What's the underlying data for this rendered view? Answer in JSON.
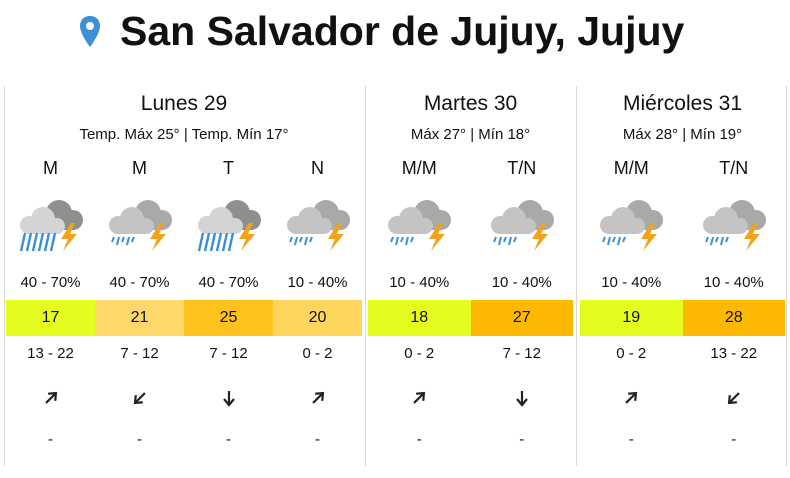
{
  "header": {
    "title": "San Salvador de Jujuy, Jujuy"
  },
  "days": [
    {
      "name": "Lunes 29",
      "summary": "Temp. Máx 25° | Temp. Mín 17°",
      "periods": [
        {
          "label": "M",
          "icon": "storm",
          "precip": "40 - 70%",
          "temp": "17",
          "color": "#e5fc1f",
          "wind": "13 - 22",
          "arrow": "ne",
          "gust": "-"
        },
        {
          "label": "M",
          "icon": "showers",
          "precip": "40 - 70%",
          "temp": "21",
          "color": "#fed86a",
          "wind": "7 - 12",
          "arrow": "sw",
          "gust": "-"
        },
        {
          "label": "T",
          "icon": "storm",
          "precip": "40 - 70%",
          "temp": "25",
          "color": "#fdc21c",
          "wind": "7 - 12",
          "arrow": "s",
          "gust": "-"
        },
        {
          "label": "N",
          "icon": "showers",
          "precip": "10 - 40%",
          "temp": "20",
          "color": "#fed65e",
          "wind": "0 - 2",
          "arrow": "ne",
          "gust": "-"
        }
      ]
    },
    {
      "name": "Martes 30",
      "summary": "Máx 27° | Mín 18°",
      "periods": [
        {
          "label": "M/M",
          "icon": "showers",
          "precip": "10 - 40%",
          "temp": "18",
          "color": "#e5fc1f",
          "wind": "0 - 2",
          "arrow": "ne",
          "gust": "-"
        },
        {
          "label": "T/N",
          "icon": "showers",
          "precip": "10 - 40%",
          "temp": "27",
          "color": "#fdb902",
          "wind": "7 - 12",
          "arrow": "s",
          "gust": "-"
        }
      ]
    },
    {
      "name": "Miércoles 31",
      "summary": "Máx 28° | Mín 19°",
      "periods": [
        {
          "label": "M/M",
          "icon": "showers",
          "precip": "10 - 40%",
          "temp": "19",
          "color": "#e5fc1f",
          "wind": "0 - 2",
          "arrow": "ne",
          "gust": "-"
        },
        {
          "label": "T/N",
          "icon": "showers",
          "precip": "10 - 40%",
          "temp": "28",
          "color": "#fdb902",
          "wind": "13 - 22",
          "arrow": "sw",
          "gust": "-"
        }
      ]
    }
  ]
}
